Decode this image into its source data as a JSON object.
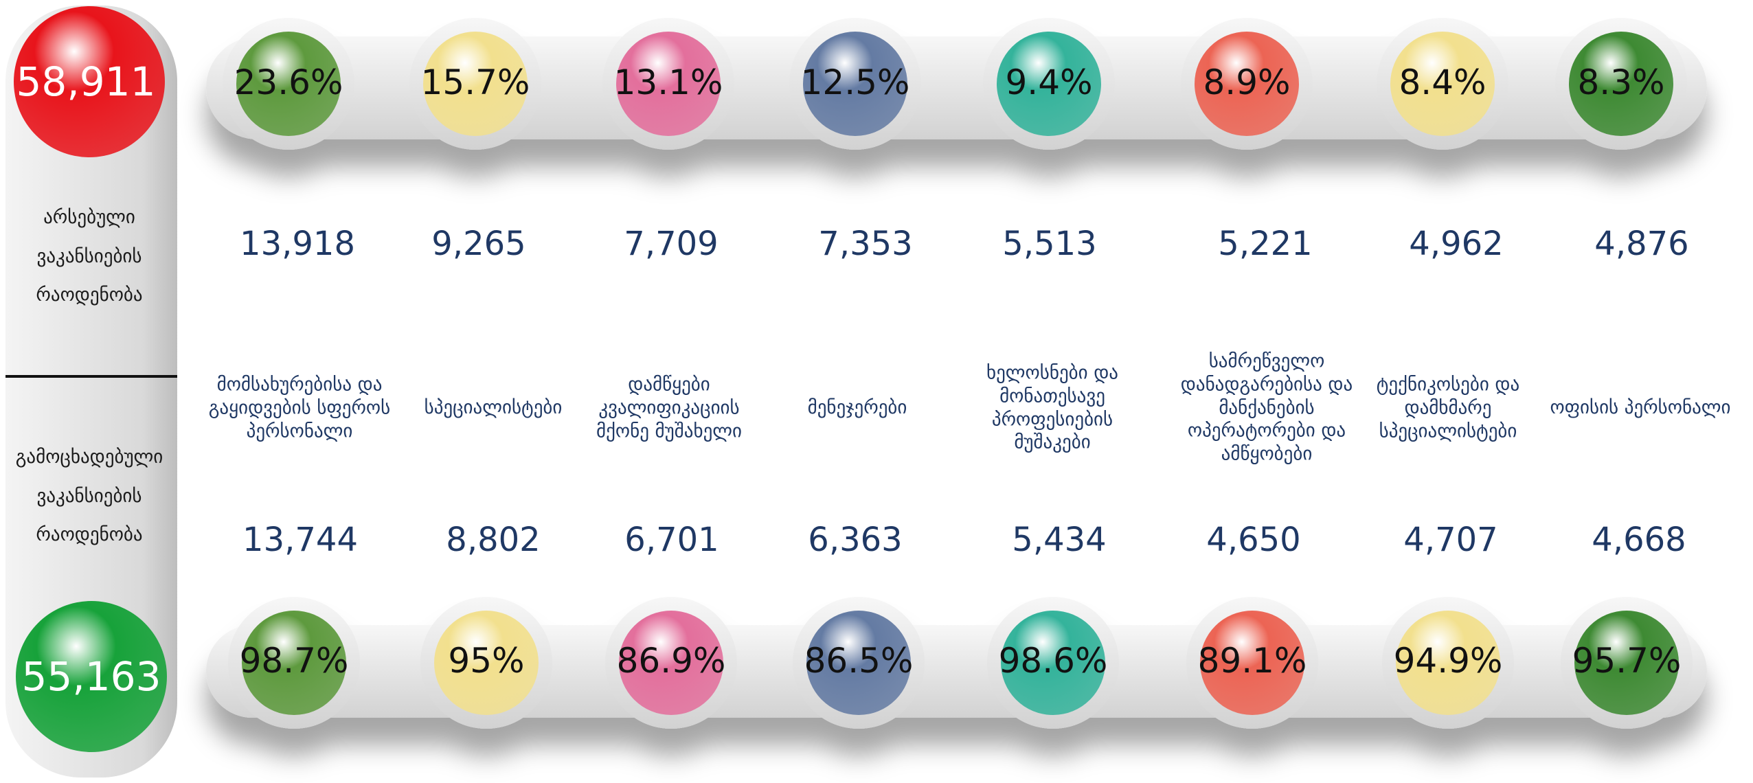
{
  "left": {
    "existing_total": "58,911",
    "existing_label": "არსებული ვაკანსიების რაოდენობა",
    "announced_label": "გამოცხადებული ვაკანსიების რაოდენობა",
    "announced_total": "55,163"
  },
  "columns": [
    {
      "share": "23.6%",
      "existing": "13,918",
      "occupation": "მომსახურებისა და გაყიდვების სფეროს პერსონალი",
      "announced": "13,744",
      "fill_rate": "98.7%"
    },
    {
      "share": "15.7%",
      "existing": "9,265",
      "occupation": "სპეციალისტები",
      "announced": "8,802",
      "fill_rate": "95%"
    },
    {
      "share": "13.1%",
      "existing": "7,709",
      "occupation": "დამწყები კვალიფიკაციის მქონე მუშახელი",
      "announced": "6,701",
      "fill_rate": "86.9%"
    },
    {
      "share": "12.5%",
      "existing": "7,353",
      "occupation": "მენეჯერები",
      "announced": "6,363",
      "fill_rate": "86.5%"
    },
    {
      "share": "9.4%",
      "existing": "5,513",
      "occupation": "ხელოსნები და მონათესავე პროფესიების მუშაკები",
      "announced": "5,434",
      "fill_rate": "98.6%"
    },
    {
      "share": "8.9%",
      "existing": "5,221",
      "occupation": "სამრეწველო დანადგარებისა და მანქანების ოპერატორები და ამწყობები",
      "announced": "4,650",
      "fill_rate": "89.1%"
    },
    {
      "share": "8.4%",
      "existing": "4,962",
      "occupation": "ტექნიკოსები და დამხმარე სპეციალისტები",
      "announced": "4,707",
      "fill_rate": "94.9%"
    },
    {
      "share": "8.3%",
      "existing": "4,876",
      "occupation": "ოფისის პერსონალი",
      "announced": "4,668",
      "fill_rate": "95.7%"
    }
  ]
}
